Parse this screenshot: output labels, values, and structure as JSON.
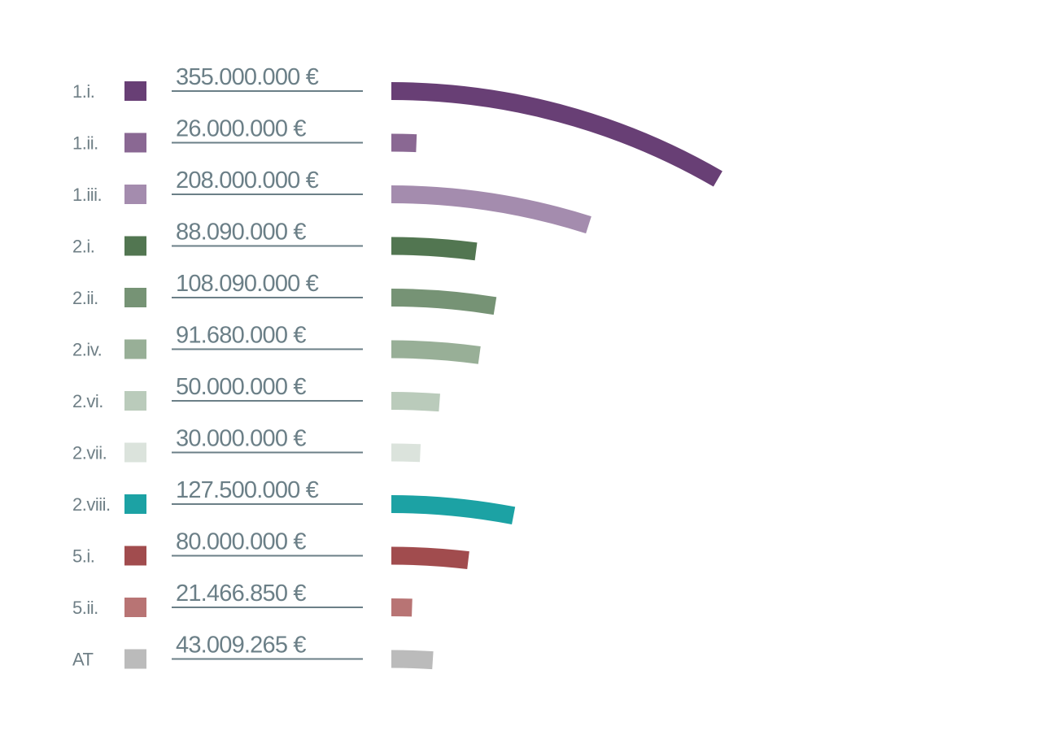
{
  "chart_data": {
    "type": "bar",
    "orientation": "horizontal",
    "bar_style": "curved",
    "title": "",
    "xlabel": "",
    "ylabel": "",
    "currency": "€",
    "categories": [
      "1.i.",
      "1.ii.",
      "1.iii.",
      "2.i.",
      "2.ii.",
      "2.iv.",
      "2.vi.",
      "2.vii.",
      "2.viii.",
      "5.i.",
      "5.ii.",
      "AT"
    ],
    "values": [
      355000000,
      26000000,
      208000000,
      88090000,
      108090000,
      91680000,
      50000000,
      30000000,
      127500000,
      80000000,
      21466850,
      43009265
    ],
    "value_labels": [
      "355.000.000 €",
      "26.000.000 €",
      "208.000.000 €",
      "88.090.000 €",
      "108.090.000 €",
      "91.680.000 €",
      "50.000.000 €",
      "30.000.000 €",
      "127.500.000 €",
      "80.000.000 €",
      "21.466.850 €",
      "43.009.265 €"
    ],
    "colors": [
      "#683f75",
      "#8a6893",
      "#a48cae",
      "#527651",
      "#769375",
      "#98af97",
      "#bacbbb",
      "#dbe3dc",
      "#1ca2a4",
      "#a14c4e",
      "#b87474",
      "#bbbbbb"
    ],
    "legend": "left",
    "grid": false
  }
}
